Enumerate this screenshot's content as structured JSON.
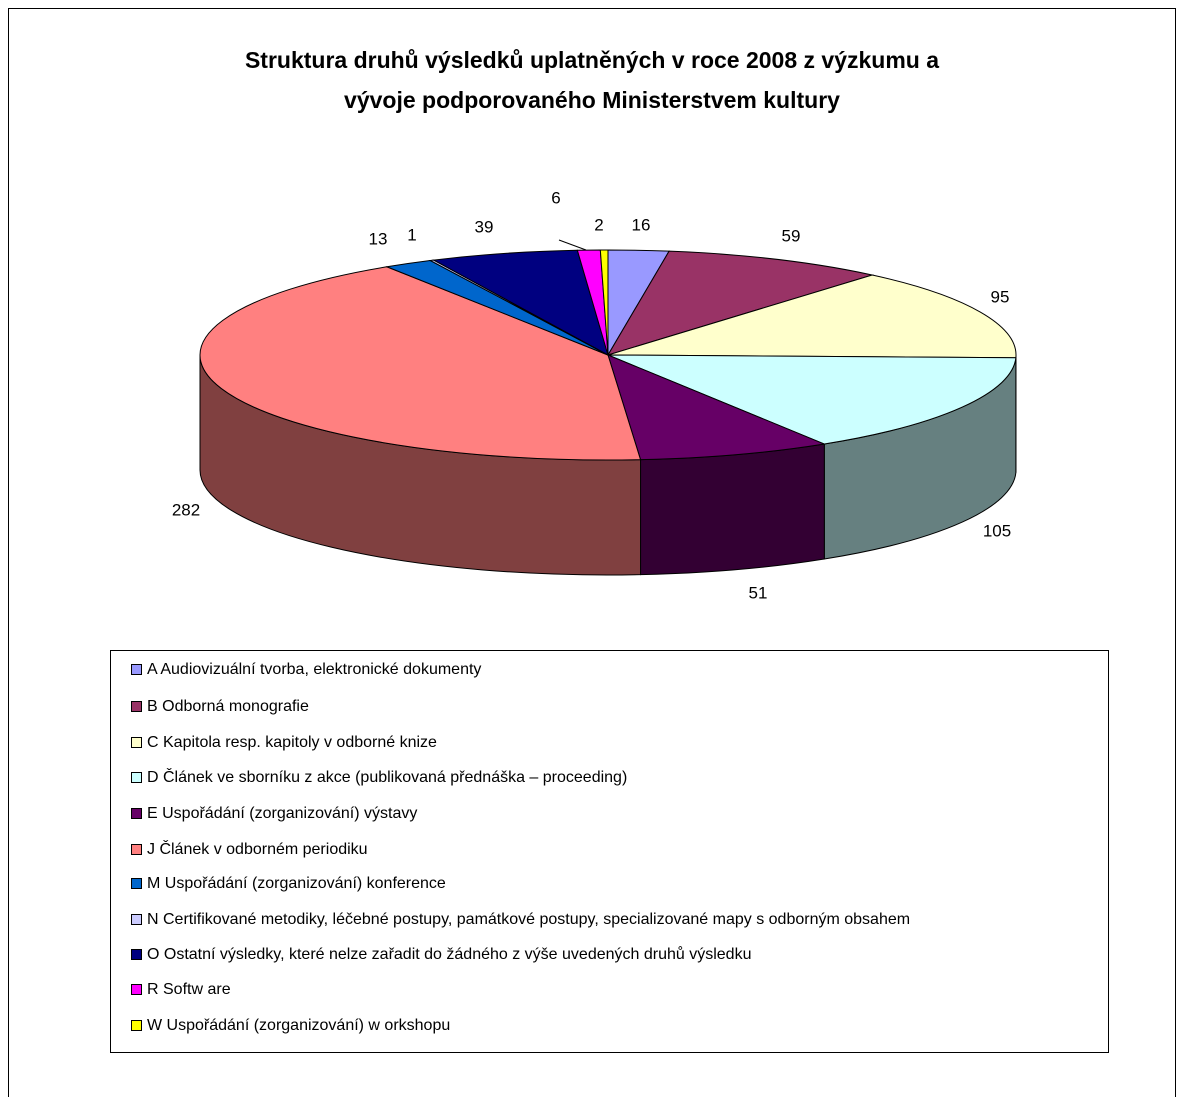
{
  "chart_data": {
    "type": "pie3d",
    "title": [
      "Struktura druhů výsledků uplatněných v roce 2008 z výzkumu a",
      "vývoje podporovaného Ministerstvem kultury"
    ],
    "categories": [
      "A  Audiovizuální tvorba, elektronické dokumenty",
      "B Odborná monografie",
      "C Kapitola resp. kapitoly v odborné knize",
      "D Článek ve sborníku z akce (publikovaná přednáška – proceeding)",
      "E Uspořádání (zorganizování) výstavy",
      "J Článek v odborném periodiku",
      "M Uspořádání (zorganizování) konference",
      "N Certifikované metodiky, léčebné postupy, památkové postupy, specializované mapy s odborným obsahem",
      "O Ostatní výsledky, které nelze zařadit do žádného z výše uvedených druhů výsledku",
      "R Softw are",
      "W Uspořádání (zorganizování) w orkshopu"
    ],
    "values": [
      16,
      59,
      95,
      105,
      51,
      282,
      13,
      1,
      39,
      6,
      2
    ],
    "colors": [
      "#9999ff",
      "#993366",
      "#ffffcc",
      "#ccffff",
      "#660066",
      "#ff8080",
      "#0066cc",
      "#ccccff",
      "#000080",
      "#ff00ff",
      "#ffff00"
    ],
    "legend": "bottom"
  }
}
